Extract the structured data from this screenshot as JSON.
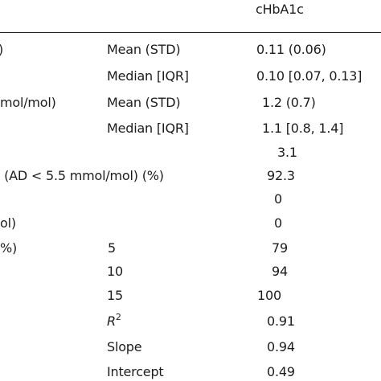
{
  "table": {
    "header": {
      "col_c": "cHbA1c"
    },
    "rows": [
      {
        "a": ")",
        "b": "Mean (STD)",
        "c": "0.11 (0.06)"
      },
      {
        "a": "",
        "b": "Median [IQR]",
        "c": "0.10 [0.07, 0.13]"
      },
      {
        "a": "mol/mol)",
        "b": "Mean (STD)",
        "c": "1.2 (0.7)"
      },
      {
        "a": "",
        "b": "Median [IQR]",
        "c": "1.1 [0.8, 1.4]"
      },
      {
        "a": "",
        "b": "",
        "c": "3.1"
      },
      {
        "a": "ı (AD < 5.5 mmol/mol) (%)",
        "b": "",
        "c": "92.3"
      },
      {
        "a": "",
        "b": "",
        "c": "0"
      },
      {
        "a": "ol)",
        "b": "",
        "c": "0"
      },
      {
        "a": "%)",
        "b": "5",
        "c": "79"
      },
      {
        "a": "",
        "b": "10",
        "c": "94"
      },
      {
        "a": "",
        "b": "15",
        "c": "100"
      },
      {
        "a": "",
        "b_main": "R",
        "b_sup": "2",
        "c": "0.91"
      },
      {
        "a": "",
        "b": "Slope",
        "c": "0.94"
      },
      {
        "a": "",
        "b": "Intercept",
        "c": "0.49"
      }
    ]
  }
}
